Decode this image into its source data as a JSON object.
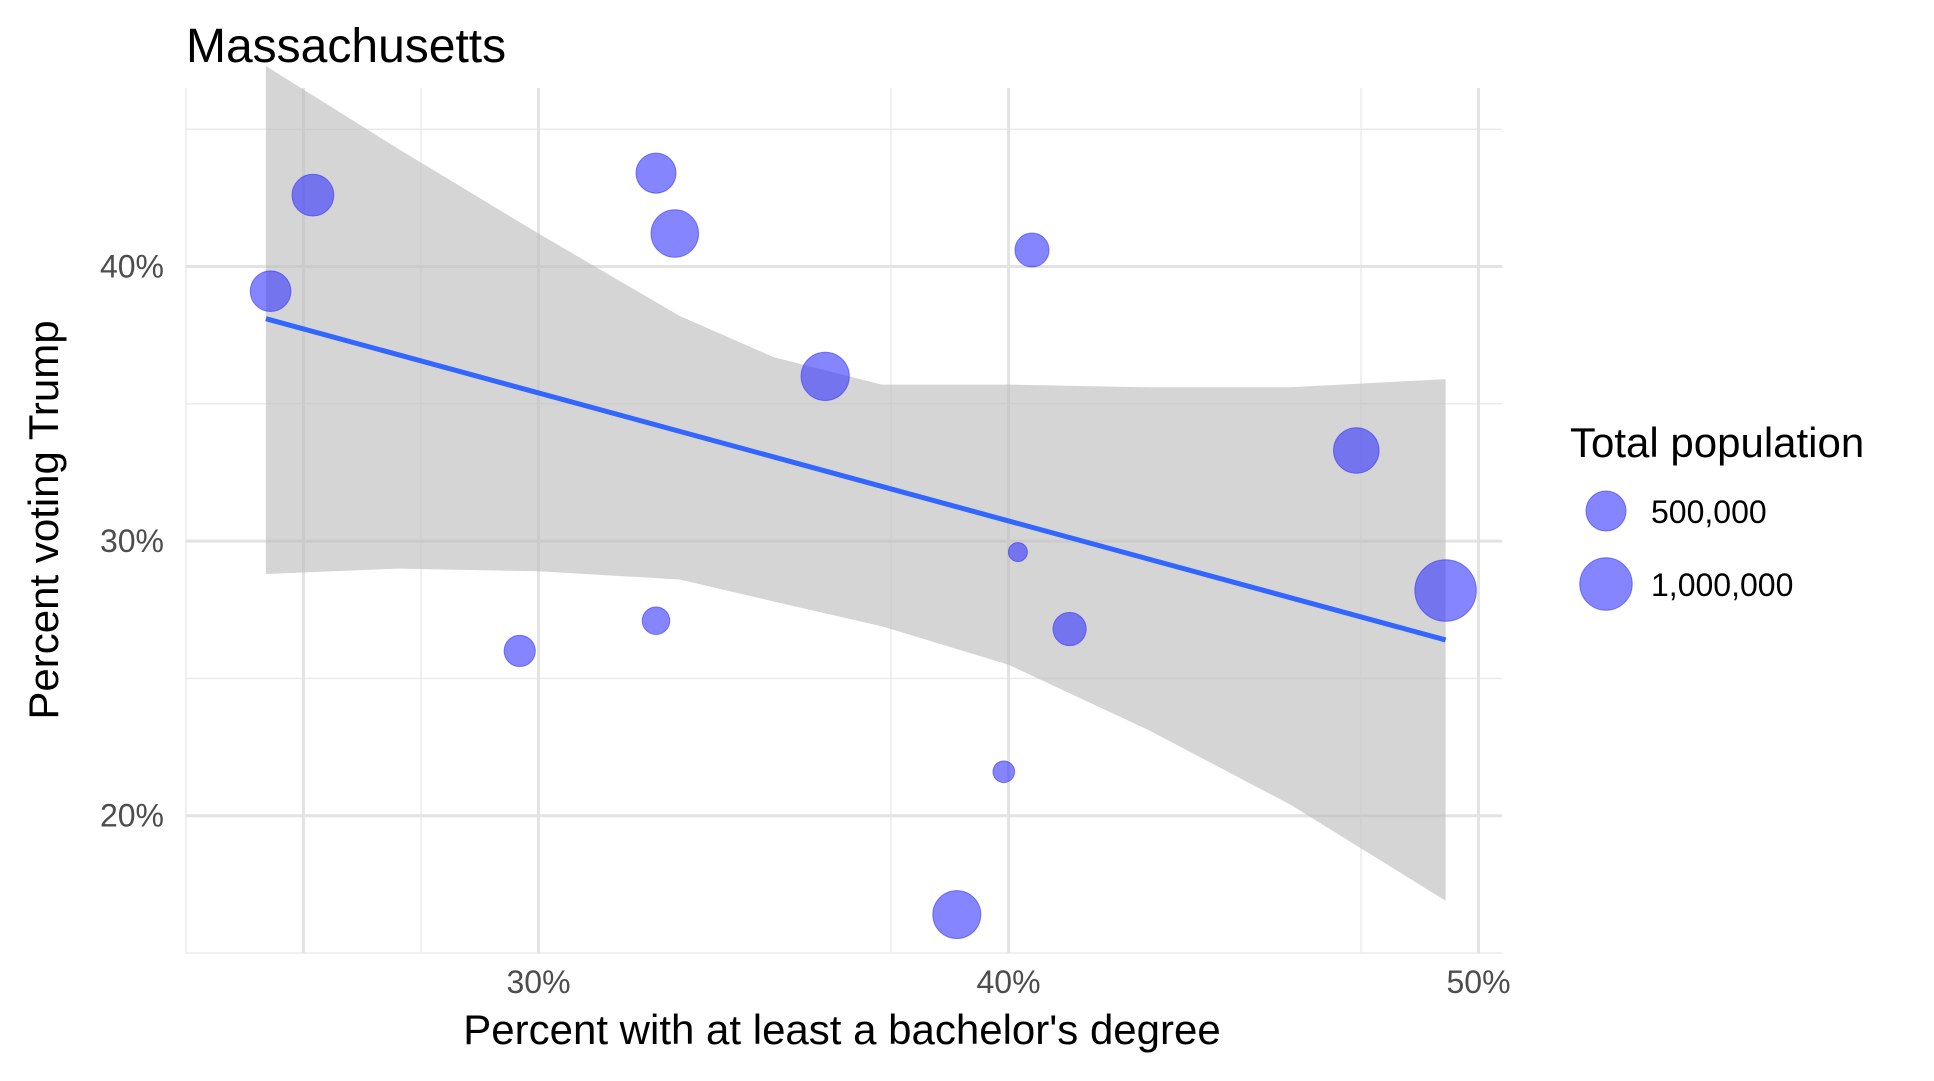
{
  "chart_data": {
    "type": "scatter",
    "title": "Massachusetts",
    "xlabel": "Percent with at least a bachelor's degree",
    "ylabel": "Percent voting Trump",
    "xlim": [
      22.5,
      50.5
    ],
    "ylim": [
      15,
      46.5
    ],
    "x_ticks": [
      30,
      40,
      50
    ],
    "x_tick_labels": [
      "30%",
      "40%",
      "50%"
    ],
    "y_ticks": [
      20,
      30,
      40
    ],
    "y_tick_labels": [
      "20%",
      "30%",
      "40%"
    ],
    "grid": true,
    "points": [
      {
        "x": 24.3,
        "y": 39.1,
        "population": 520000
      },
      {
        "x": 25.2,
        "y": 42.6,
        "population": 560000
      },
      {
        "x": 29.6,
        "y": 26.0,
        "population": 250000
      },
      {
        "x": 32.5,
        "y": 43.4,
        "population": 500000
      },
      {
        "x": 32.5,
        "y": 27.1,
        "population": 170000
      },
      {
        "x": 32.9,
        "y": 41.2,
        "population": 780000
      },
      {
        "x": 36.1,
        "y": 36.0,
        "population": 810000
      },
      {
        "x": 38.9,
        "y": 16.4,
        "population": 800000
      },
      {
        "x": 39.9,
        "y": 21.6,
        "population": 75000
      },
      {
        "x": 40.2,
        "y": 29.6,
        "population": 45000
      },
      {
        "x": 40.5,
        "y": 40.6,
        "population": 320000
      },
      {
        "x": 41.3,
        "y": 26.8,
        "population": 300000
      },
      {
        "x": 47.4,
        "y": 33.3,
        "population": 700000
      },
      {
        "x": 49.3,
        "y": 28.2,
        "population": 1470000
      }
    ],
    "trend_line": {
      "x": [
        24.2,
        49.3
      ],
      "y": [
        38.1,
        26.4
      ]
    },
    "confidence_band": {
      "x": [
        24.2,
        27,
        30,
        33,
        35,
        37.3,
        40,
        43,
        46,
        49.3
      ],
      "upper": [
        47.3,
        44.3,
        41.2,
        38.2,
        36.7,
        35.7,
        35.7,
        35.6,
        35.6,
        35.9
      ],
      "lower": [
        28.8,
        29.0,
        28.9,
        28.6,
        27.8,
        26.9,
        25.5,
        23.1,
        20.4,
        16.9
      ]
    },
    "point_color": "#3333ff",
    "line_color": "#3366ff",
    "band_color": "#bfbfbf",
    "legend": {
      "title": "Total population",
      "position": "right",
      "entries": [
        {
          "label": "500,000",
          "value": 500000
        },
        {
          "label": "1,000,000",
          "value": 1000000
        }
      ]
    }
  }
}
